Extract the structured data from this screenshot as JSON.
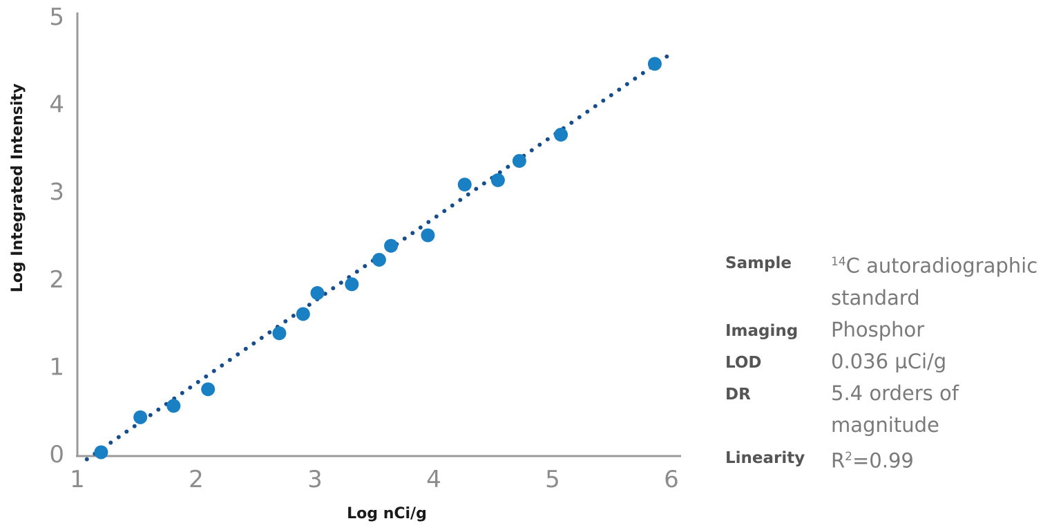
{
  "chart_data": {
    "type": "scatter",
    "xlabel": "Log nCi/g",
    "ylabel": "Log Integrated Intensity",
    "xlim": [
      1,
      6
    ],
    "ylim": [
      0,
      5
    ],
    "x_ticks": [
      "1",
      "2",
      "3",
      "4",
      "5",
      "6"
    ],
    "y_ticks": [
      "0",
      "1",
      "2",
      "3",
      "4",
      "5"
    ],
    "grid": false,
    "marker_color": "#1a80c4",
    "trendline_color": "#164d8a",
    "points": [
      {
        "x": 1.2,
        "y": 0.02
      },
      {
        "x": 1.53,
        "y": 0.42
      },
      {
        "x": 1.81,
        "y": 0.55
      },
      {
        "x": 2.1,
        "y": 0.74
      },
      {
        "x": 2.7,
        "y": 1.38
      },
      {
        "x": 2.9,
        "y": 1.6
      },
      {
        "x": 3.02,
        "y": 1.84
      },
      {
        "x": 3.31,
        "y": 1.94
      },
      {
        "x": 3.54,
        "y": 2.22
      },
      {
        "x": 3.64,
        "y": 2.38
      },
      {
        "x": 3.95,
        "y": 2.5
      },
      {
        "x": 4.26,
        "y": 3.08
      },
      {
        "x": 4.54,
        "y": 3.13
      },
      {
        "x": 4.72,
        "y": 3.35
      },
      {
        "x": 5.07,
        "y": 3.65
      },
      {
        "x": 5.86,
        "y": 4.46
      }
    ],
    "trendline": {
      "x": [
        1.08,
        6.0
      ],
      "y": [
        -0.06,
        4.58
      ]
    }
  },
  "info": {
    "rows": [
      {
        "key": "Sample",
        "value_sup": "14",
        "value": "C autoradiographic standard"
      },
      {
        "key": "Imaging",
        "value": "Phosphor"
      },
      {
        "key": "LOD",
        "value": "0.036 µCi/g"
      },
      {
        "key": "DR",
        "value": "5.4 orders of magnitude"
      },
      {
        "key": "Linearity",
        "value_pre": "R",
        "value_sup": "2",
        "value": "=0.99"
      }
    ]
  }
}
